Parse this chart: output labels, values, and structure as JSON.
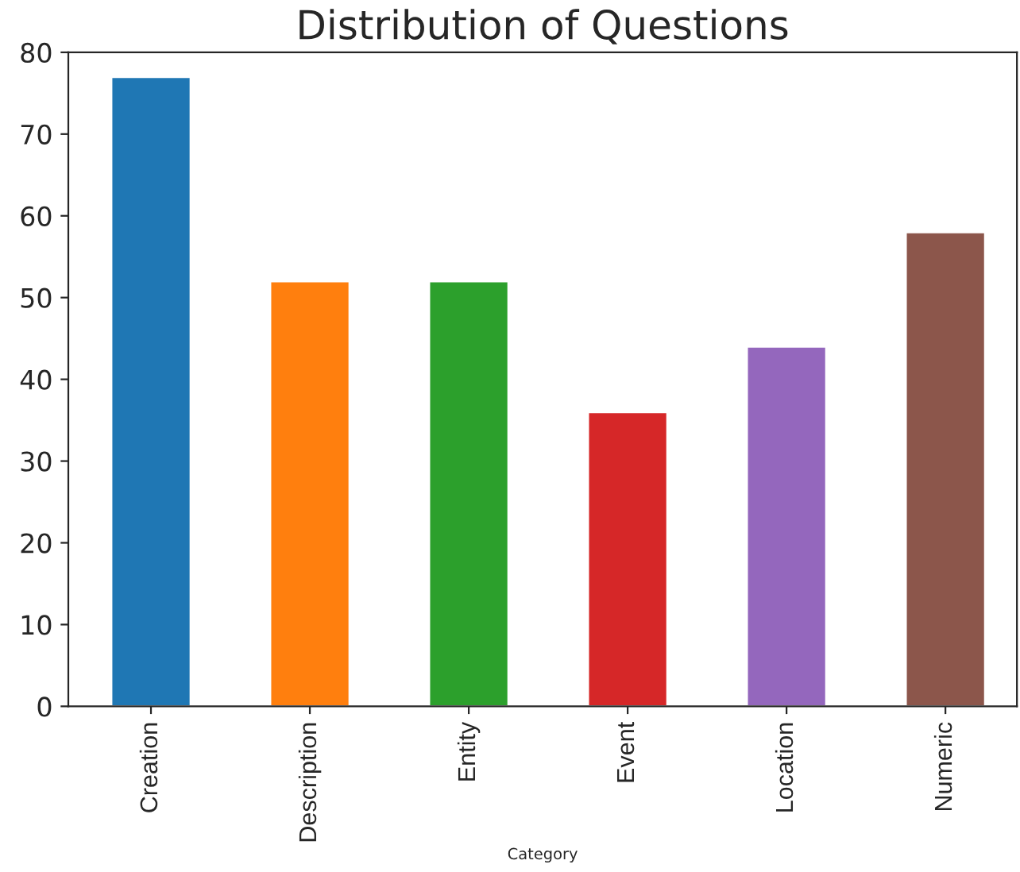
{
  "chart_data": {
    "type": "bar",
    "title": "Distribution of Questions",
    "xlabel": "Category",
    "categories": [
      "Creation",
      "Description",
      "Entity",
      "Event",
      "Location",
      "Numeric"
    ],
    "values": [
      77,
      52,
      52,
      36,
      44,
      58
    ],
    "colors": [
      "#1f77b4",
      "#ff7f0e",
      "#2ca02c",
      "#d62728",
      "#9467bd",
      "#8c564b"
    ],
    "ylim": [
      0,
      80
    ],
    "yticks": [
      0,
      10,
      20,
      30,
      40,
      50,
      60,
      70,
      80
    ],
    "grid": false,
    "legend": false
  }
}
